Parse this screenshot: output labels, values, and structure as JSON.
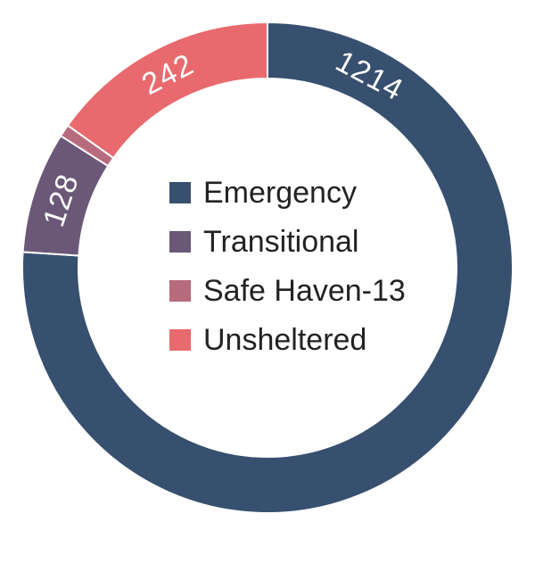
{
  "chart_data": {
    "type": "pie",
    "categories": [
      "Emergency",
      "Transitional",
      "Safe Haven-13",
      "Unsheltered"
    ],
    "values": [
      1214,
      128,
      13,
      242
    ],
    "labels": [
      "1214",
      "128",
      "",
      "242"
    ],
    "colors": [
      "#37506f",
      "#6b5878",
      "#b86b7c",
      "#e86a6e"
    ],
    "donut": true,
    "legend_position": "center"
  }
}
